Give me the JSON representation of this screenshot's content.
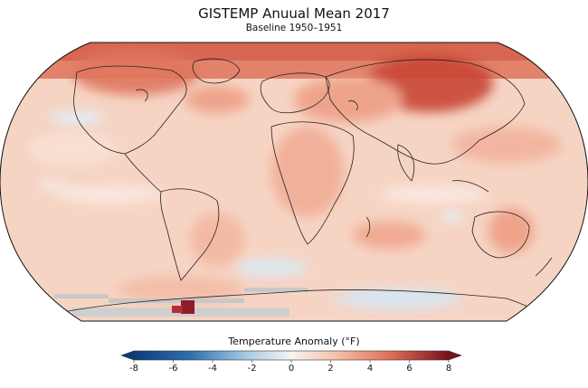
{
  "title": "GISTEMP Anuual Mean 2017",
  "subtitle": "Baseline 1950–1951",
  "colorbar": {
    "label": "Temperature Anomaly (°F)",
    "min": -8,
    "max": 8,
    "ticks": [
      "-8",
      "-6",
      "-4",
      "-2",
      "0",
      "2",
      "4",
      "6",
      "8"
    ],
    "colors": {
      "deep_blue": "#0b3b78",
      "blue": "#2f6fb0",
      "light_blue": "#a9cce3",
      "neutral": "#f7f4f1",
      "light_red": "#f4c2aa",
      "red": "#dd6d54",
      "deep_red": "#7a0f1f"
    },
    "extend": "both"
  },
  "map": {
    "projection": "Robinson",
    "missing_data_color": "#c8c8c8",
    "overall_tone": "mostly warm anomalies; strongest over Arctic, Siberia and northern North America"
  }
}
